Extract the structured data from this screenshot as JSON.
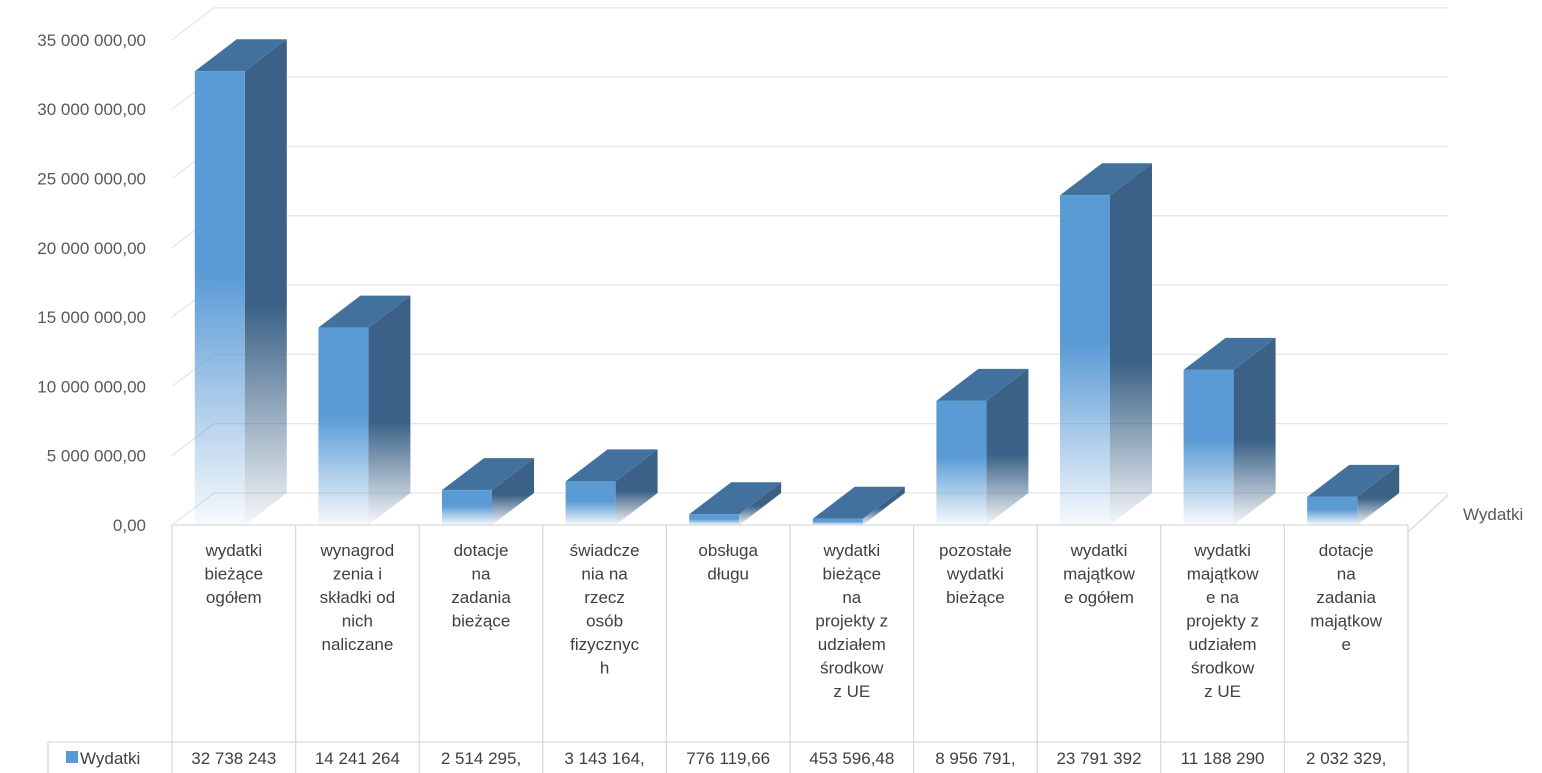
{
  "chart_data": {
    "type": "bar",
    "title": "",
    "xlabel": "",
    "ylabel": "",
    "ylim": [
      0,
      35000000
    ],
    "y_ticks": [
      "0,00",
      "5 000 000,00",
      "10 000 000,00",
      "15 000 000,00",
      "20 000 000,00",
      "25 000 000,00",
      "30 000 000,00",
      "35 000 000,00"
    ],
    "depth_axis_label": "Wydatki",
    "grid": true,
    "legend_placement": "data-table-left",
    "colors": {
      "bar_front": "#5b9bd5",
      "bar_top": "#41719c",
      "bar_side": "#3b6286",
      "grid": "#e6e6e6"
    },
    "categories": [
      [
        "wydatki",
        "bieżące",
        "ogółem"
      ],
      [
        "wynagrod",
        "zenia i",
        "składki od",
        "nich",
        "naliczane"
      ],
      [
        "dotacje",
        "na",
        "zadania",
        "bieżące"
      ],
      [
        "świadcze",
        "nia na",
        "rzecz",
        "osób",
        "fizycznyc",
        "h"
      ],
      [
        "obsługa",
        "długu"
      ],
      [
        "wydatki",
        "bieżące",
        "na",
        "projekty z",
        "udziałem",
        "środkow",
        "z UE"
      ],
      [
        "pozostałe",
        "wydatki",
        "bieżące"
      ],
      [
        "wydatki",
        "majątkow",
        "e ogółem"
      ],
      [
        "wydatki",
        "majątkow",
        "e na",
        "projekty z",
        "udziałem",
        "środkow",
        "z UE"
      ],
      [
        "dotacje",
        "na",
        "zadania",
        "majątkow",
        "e"
      ]
    ],
    "series": [
      {
        "name": "Wydatki",
        "values": [
          32738243,
          14241264,
          2514295,
          3143164,
          776119.66,
          453596.48,
          8956791,
          23791392,
          11188290,
          2032329
        ],
        "table_labels": [
          "32 738 243",
          "14 241 264",
          "2 514 295,",
          "3 143 164,",
          "776 119,66",
          "453 596,48",
          "8 956 791,",
          "23 791 392",
          "11 188 290",
          "2 032 329,"
        ]
      }
    ]
  }
}
